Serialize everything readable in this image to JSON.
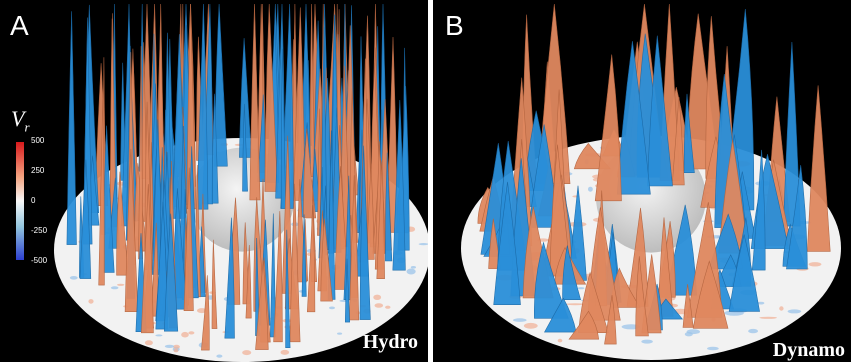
{
  "panels": [
    {
      "letter": "A",
      "label": "Hydro"
    },
    {
      "letter": "B",
      "label": "Dynamo"
    }
  ],
  "colorbar": {
    "symbol": "V",
    "subscript": "r",
    "ticks": [
      "500",
      "250",
      "0",
      "-250",
      "-500"
    ],
    "colors": {
      "positive": "#e0885f",
      "negative": "#2a8fd9",
      "neutral": "#f2f2f2"
    }
  }
}
